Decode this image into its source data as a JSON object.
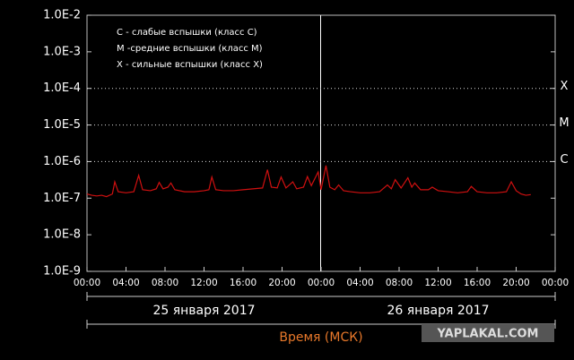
{
  "chart_data": {
    "type": "line",
    "log_y": true,
    "legend_lines": [
      "C - слабые вспышки (класс C)",
      "M -средние вспышки (класс M)",
      "X - сильные вспышки (класс X)"
    ],
    "x_axis_label": "Время (МСК)",
    "day_labels": [
      "25 января 2017",
      "26 января 2017"
    ],
    "watermark": "YAPLAKAL.COM",
    "thresholds": [
      {
        "value": 0.0001,
        "label": "X"
      },
      {
        "value": 1e-05,
        "label": "M"
      },
      {
        "value": 1e-06,
        "label": "C"
      }
    ],
    "xlim": [
      0,
      48
    ],
    "xticks": [
      {
        "value": 0,
        "label": "00:00"
      },
      {
        "value": 4,
        "label": "04:00"
      },
      {
        "value": 8,
        "label": "08:00"
      },
      {
        "value": 12,
        "label": "12:00"
      },
      {
        "value": 16,
        "label": "16:00"
      },
      {
        "value": 20,
        "label": "20:00"
      },
      {
        "value": 24,
        "label": "00:00"
      },
      {
        "value": 28,
        "label": "04:00"
      },
      {
        "value": 32,
        "label": "08:00"
      },
      {
        "value": 36,
        "label": "12:00"
      },
      {
        "value": 40,
        "label": "16:00"
      },
      {
        "value": 44,
        "label": "20:00"
      },
      {
        "value": 48,
        "label": "00:00"
      }
    ],
    "ylim": [
      1e-09,
      0.01
    ],
    "yticks": [
      {
        "value": 0.01,
        "label": "1.0E-2"
      },
      {
        "value": 0.001,
        "label": "1.0E-3"
      },
      {
        "value": 0.0001,
        "label": "1.0E-4"
      },
      {
        "value": 1e-05,
        "label": "1.0E-5"
      },
      {
        "value": 1e-06,
        "label": "1.0E-6"
      },
      {
        "value": 1e-07,
        "label": "1.0E-7"
      },
      {
        "value": 1e-08,
        "label": "1.0E-8"
      },
      {
        "value": 1e-09,
        "label": "1.0E-9"
      }
    ],
    "x": [
      0,
      0.5,
      1,
      1.5,
      2,
      2.6,
      2.85,
      3.2,
      4,
      4.8,
      5.3,
      5.7,
      6.5,
      7.1,
      7.4,
      7.8,
      8.3,
      8.6,
      9,
      10,
      11,
      12,
      12.5,
      12.8,
      13.2,
      14,
      15,
      16,
      17,
      18,
      18.5,
      18.9,
      19.5,
      19.9,
      20.4,
      21.1,
      21.5,
      22.2,
      22.6,
      23,
      23.7,
      24,
      24.5,
      24.9,
      25.4,
      25.8,
      26.3,
      27,
      28,
      29,
      30,
      30.8,
      31.2,
      31.6,
      32.2,
      32.9,
      33.3,
      33.6,
      34.2,
      35,
      35.4,
      36,
      37,
      38,
      39,
      39.4,
      40,
      41,
      42,
      43,
      43.5,
      44,
      44.5,
      45,
      45.5
    ],
    "series": [
      {
        "color": "#d01010",
        "values": [
          1.3e-07,
          1.2e-07,
          1.15e-07,
          1.2e-07,
          1.1e-07,
          1.3e-07,
          2.8e-07,
          1.5e-07,
          1.4e-07,
          1.5e-07,
          4.2e-07,
          1.7e-07,
          1.6e-07,
          1.8e-07,
          2.7e-07,
          1.8e-07,
          2e-07,
          2.6e-07,
          1.7e-07,
          1.5e-07,
          1.5e-07,
          1.6e-07,
          1.7e-07,
          3.8e-07,
          1.7e-07,
          1.6e-07,
          1.6e-07,
          1.7e-07,
          1.8e-07,
          1.9e-07,
          6e-07,
          2e-07,
          1.9e-07,
          3.8e-07,
          1.9e-07,
          2.8e-07,
          1.8e-07,
          2e-07,
          3.9e-07,
          2.2e-07,
          5.2e-07,
          1.7e-07,
          7.8e-07,
          2e-07,
          1.7e-07,
          2.3e-07,
          1.6e-07,
          1.5e-07,
          1.4e-07,
          1.4e-07,
          1.5e-07,
          2.3e-07,
          1.8e-07,
          3.2e-07,
          1.9e-07,
          3.6e-07,
          2e-07,
          2.6e-07,
          1.7e-07,
          1.7e-07,
          2e-07,
          1.6e-07,
          1.5e-07,
          1.4e-07,
          1.5e-07,
          2.1e-07,
          1.5e-07,
          1.4e-07,
          1.4e-07,
          1.5e-07,
          2.8e-07,
          1.6e-07,
          1.3e-07,
          1.2e-07,
          1.25e-07
        ]
      }
    ]
  }
}
